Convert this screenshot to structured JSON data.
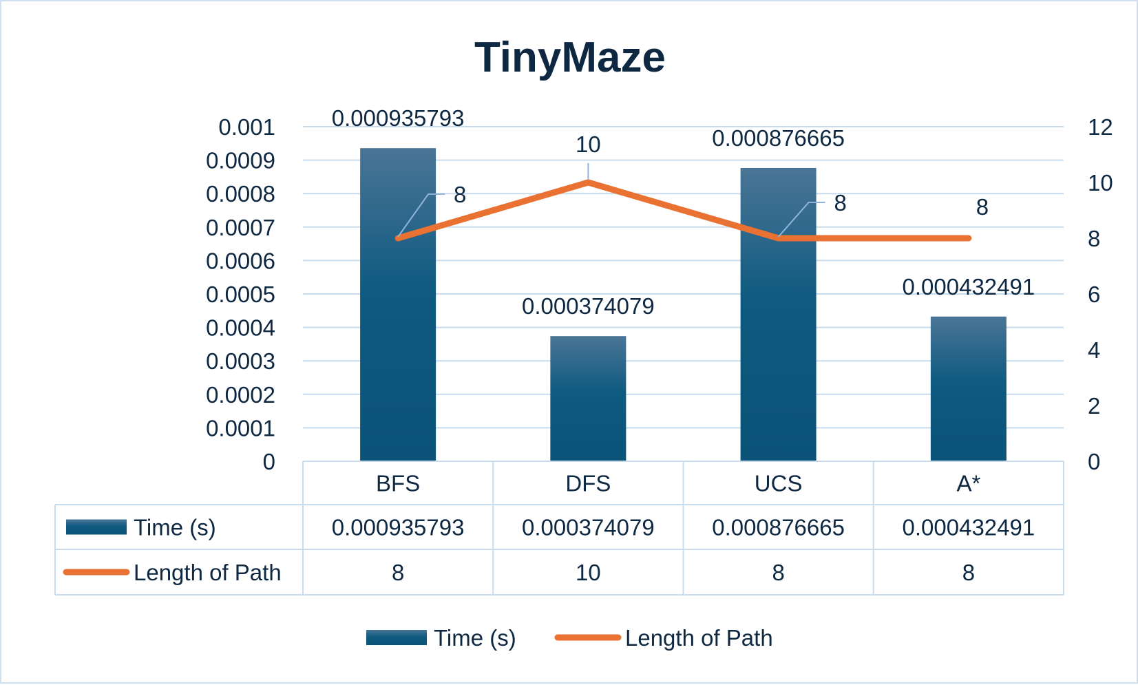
{
  "chart_data": {
    "type": "bar",
    "title": "TinyMaze",
    "categories": [
      "BFS",
      "DFS",
      "UCS",
      "A*"
    ],
    "series": [
      {
        "name": "Time (s)",
        "type": "bar",
        "axis": "left",
        "values": [
          0.000935793,
          0.000374079,
          0.000876665,
          0.000432491
        ],
        "labels": [
          "0.000935793",
          "0.000374079",
          "0.000876665",
          "0.000432491"
        ],
        "color": "#156082"
      },
      {
        "name": "Length of Path",
        "type": "line",
        "axis": "right",
        "values": [
          8,
          10,
          8,
          8
        ],
        "labels": [
          "8",
          "10",
          "8",
          "8"
        ],
        "color": "#e97132"
      }
    ],
    "y_left": {
      "ylim": [
        0,
        0.001
      ],
      "ticks": [
        "0",
        "0.0001",
        "0.0002",
        "0.0003",
        "0.0004",
        "0.0005",
        "0.0006",
        "0.0007",
        "0.0008",
        "0.0009",
        "0.001"
      ]
    },
    "y_right": {
      "ylim": [
        0,
        12
      ],
      "ticks": [
        "0",
        "2",
        "4",
        "6",
        "8",
        "10",
        "12"
      ]
    },
    "grid": true,
    "data_table": true,
    "legend": "bottom",
    "colors": {
      "text": "#0e2841",
      "grid": "#c8dcee",
      "bar_top": "#4a7596",
      "bar_bottom": "#0a5278",
      "line": "#e97132",
      "leader": "#8fb4d9"
    }
  }
}
